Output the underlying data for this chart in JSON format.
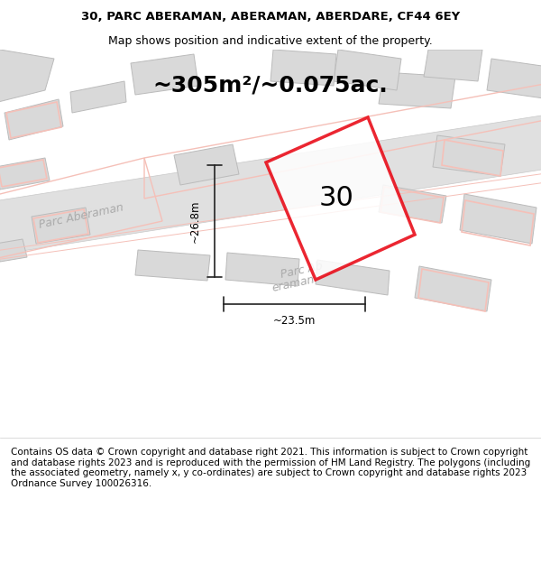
{
  "title_line1": "30, PARC ABERAMAN, ABERAMAN, ABERDARE, CF44 6EY",
  "title_line2": "Map shows position and indicative extent of the property.",
  "area_text": "~305m²/~0.075ac.",
  "label_30": "30",
  "dim_height": "~26.8m",
  "dim_width": "~23.5m",
  "footer_text": "Contains OS data © Crown copyright and database right 2021. This information is subject to Crown copyright and database rights 2023 and is reproduced with the permission of HM Land Registry. The polygons (including the associated geometry, namely x, y co-ordinates) are subject to Crown copyright and database rights 2023 Ordnance Survey 100026316.",
  "bg_color": "#f5f5f5",
  "map_bg": "#f0efed",
  "road_color": "#e8e8e8",
  "road_stroke": "#cccccc",
  "building_fill": "#d9d9d9",
  "building_stroke": "#bbbbbb",
  "red_outline": "#e8000d",
  "pink_building": "#f5c0b8",
  "street_label_color": "#aaaaaa",
  "dim_line_color": "#222222",
  "title_fontsize": 9.5,
  "subtitle_fontsize": 9.0,
  "area_fontsize": 18,
  "label30_fontsize": 22,
  "footer_fontsize": 7.5
}
